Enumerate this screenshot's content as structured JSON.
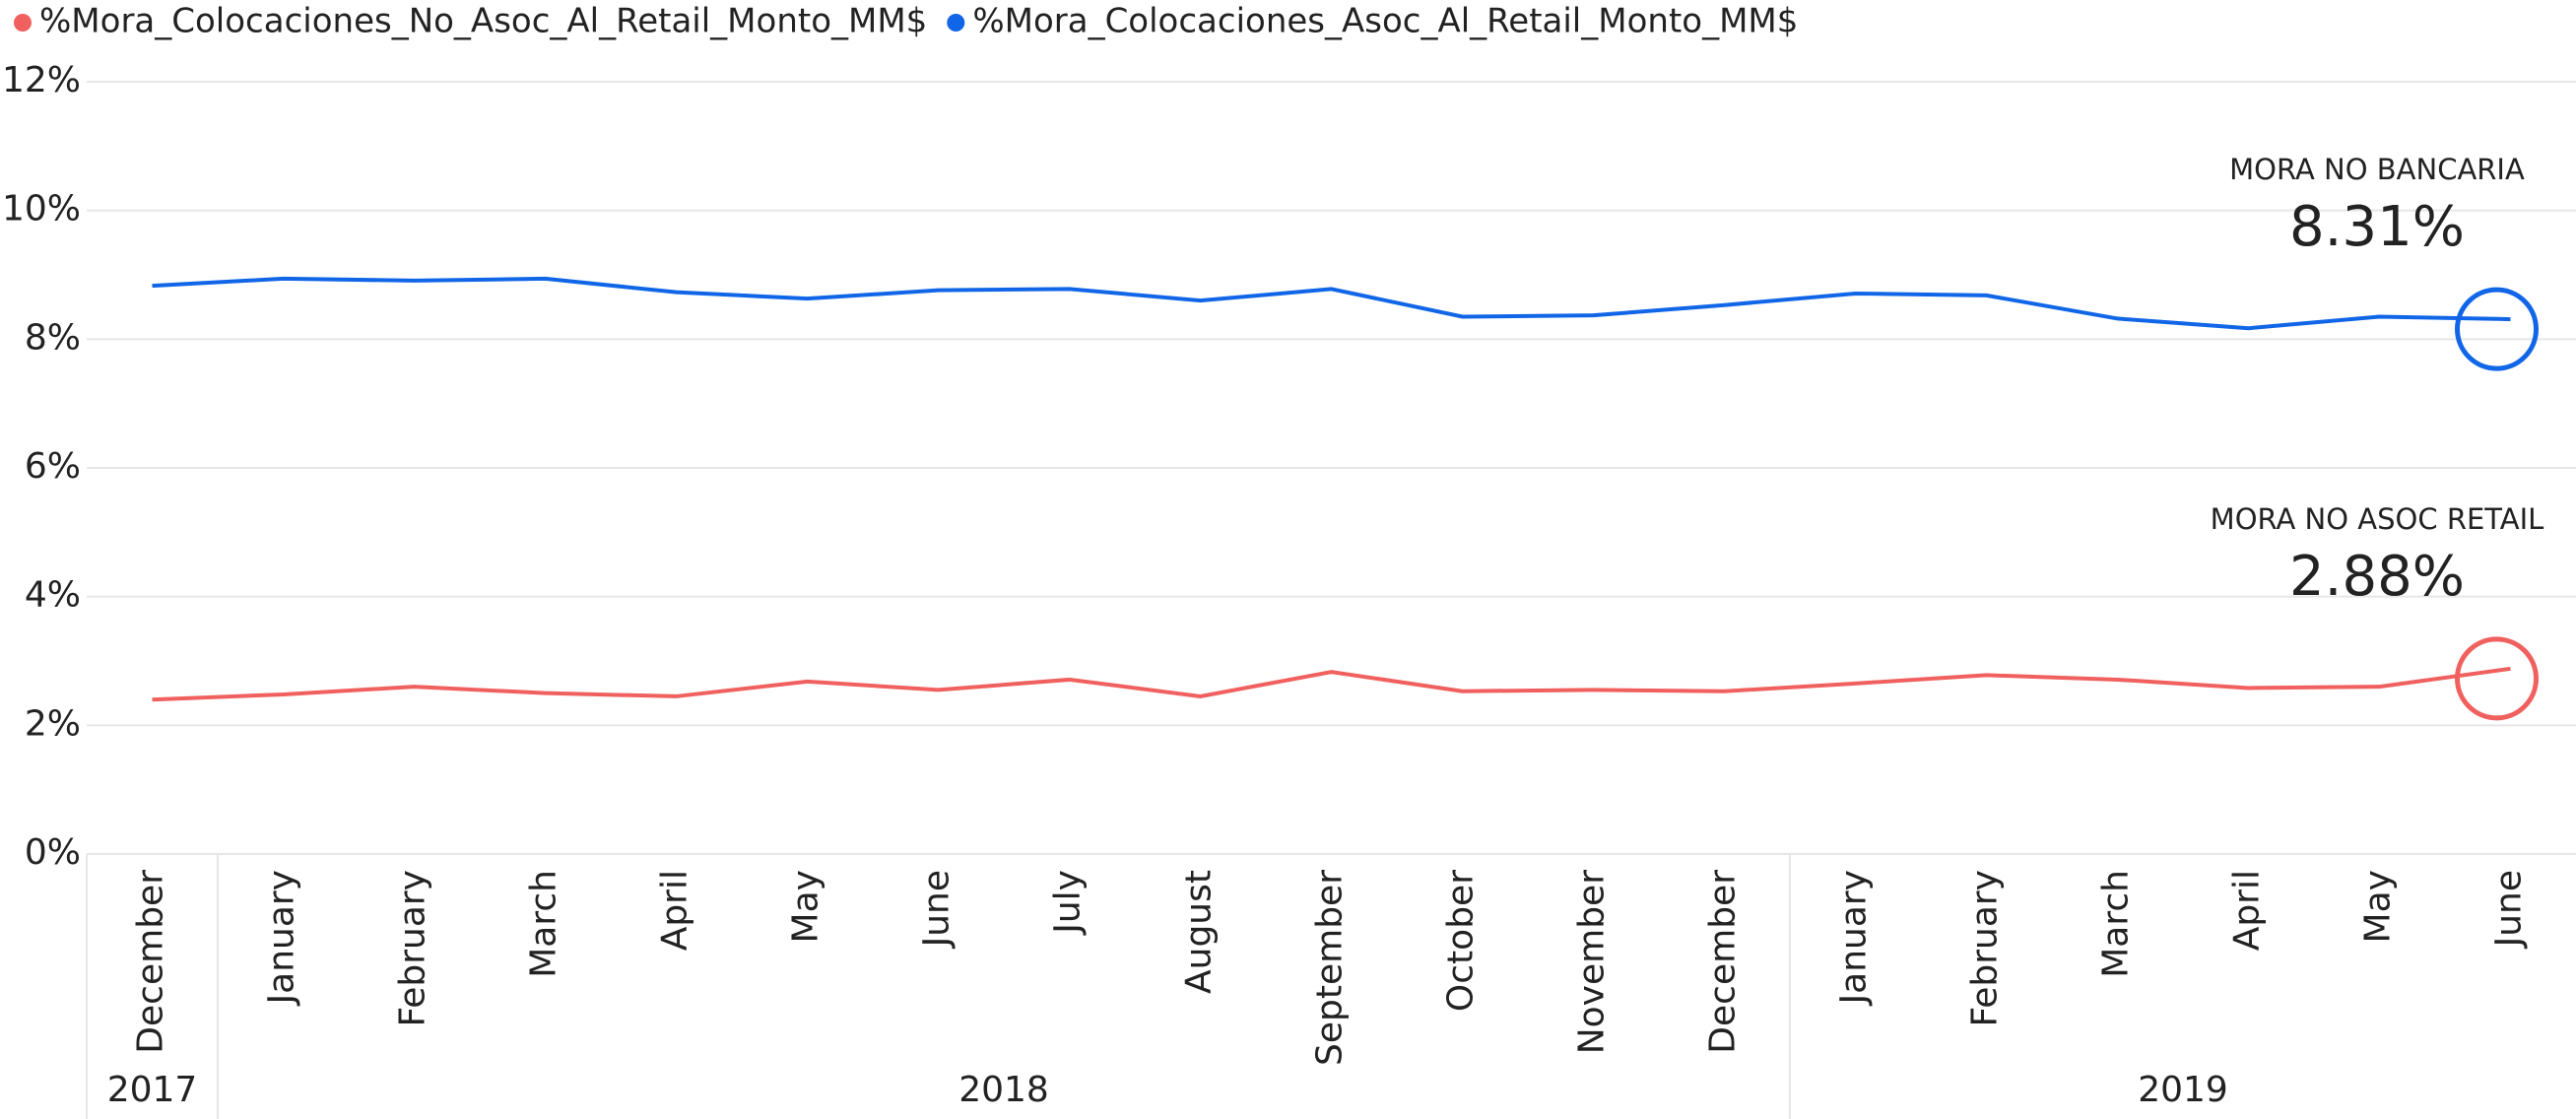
{
  "chart_data": {
    "type": "line",
    "categories": [
      {
        "month": "December",
        "year": "2017"
      },
      {
        "month": "January",
        "year": "2018"
      },
      {
        "month": "February",
        "year": "2018"
      },
      {
        "month": "March",
        "year": "2018"
      },
      {
        "month": "April",
        "year": "2018"
      },
      {
        "month": "May",
        "year": "2018"
      },
      {
        "month": "June",
        "year": "2018"
      },
      {
        "month": "July",
        "year": "2018"
      },
      {
        "month": "August",
        "year": "2018"
      },
      {
        "month": "September",
        "year": "2018"
      },
      {
        "month": "October",
        "year": "2018"
      },
      {
        "month": "November",
        "year": "2018"
      },
      {
        "month": "December",
        "year": "2018"
      },
      {
        "month": "January",
        "year": "2019"
      },
      {
        "month": "February",
        "year": "2019"
      },
      {
        "month": "March",
        "year": "2019"
      },
      {
        "month": "April",
        "year": "2019"
      },
      {
        "month": "May",
        "year": "2019"
      },
      {
        "month": "June",
        "year": "2019"
      }
    ],
    "series": [
      {
        "name": "%Mora_Colocaciones_No_Asoc_Al_Retail_Monto_MM$",
        "color": "#f0605e",
        "annotation": "MORA NO ASOC RETAIL",
        "values": [
          2.4,
          2.48,
          2.6,
          2.5,
          2.45,
          2.68,
          2.55,
          2.71,
          2.45,
          2.83,
          2.53,
          2.55,
          2.53,
          2.65,
          2.78,
          2.71,
          2.58,
          2.6,
          2.88
        ],
        "value_labels": [
          null,
          null,
          null,
          null,
          null,
          null,
          null,
          null,
          null,
          null,
          null,
          null,
          null,
          null,
          null,
          null,
          null,
          null,
          "2.88%"
        ]
      },
      {
        "name": "%Mora_Colocaciones_Asoc_Al_Retail_Monto_MM$",
        "color": "#1166e8",
        "annotation": "MORA NO BANCARIA",
        "values": [
          8.83,
          8.94,
          8.91,
          8.94,
          8.73,
          8.63,
          8.76,
          8.78,
          8.6,
          8.78,
          8.35,
          8.37,
          8.53,
          8.71,
          8.68,
          8.32,
          8.17,
          8.35,
          8.31
        ],
        "value_labels": [
          null,
          null,
          null,
          null,
          null,
          null,
          null,
          null,
          null,
          null,
          null,
          null,
          null,
          null,
          null,
          null,
          null,
          null,
          "8.31%"
        ]
      }
    ],
    "ylim": [
      0,
      12
    ],
    "yticks": [
      {
        "value": 0,
        "label": "0%"
      },
      {
        "value": 2,
        "label": "2%"
      },
      {
        "value": 4,
        "label": "4%"
      },
      {
        "value": 6,
        "label": "6%"
      },
      {
        "value": 8,
        "label": "8%"
      },
      {
        "value": 10,
        "label": "10%"
      },
      {
        "value": 12,
        "label": "12%"
      }
    ],
    "grid": true
  }
}
